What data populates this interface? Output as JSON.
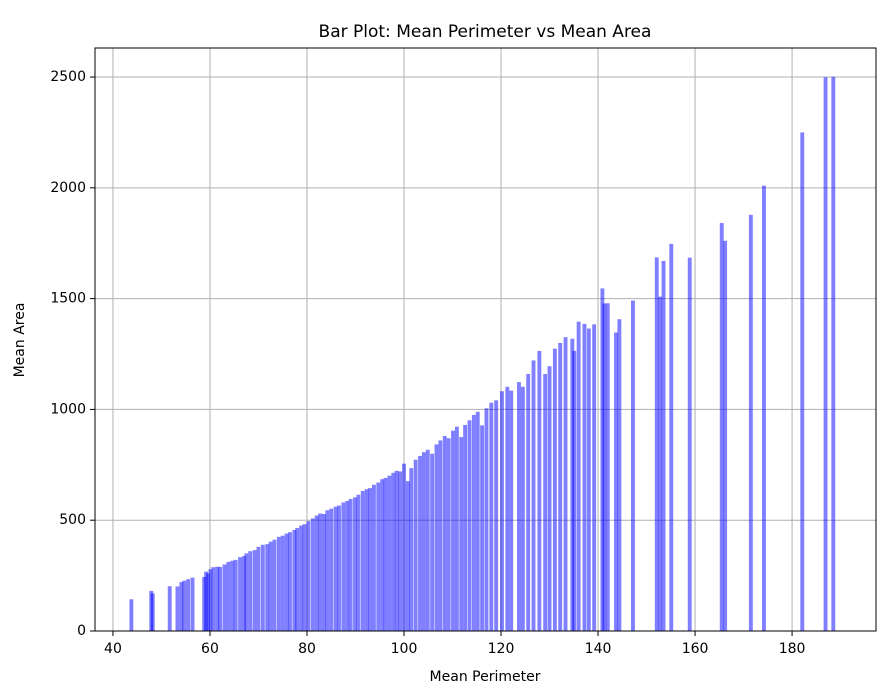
{
  "chart_data": {
    "type": "bar",
    "title": "Bar Plot: Mean Perimeter vs Mean Area",
    "x_label": "Mean Perimeter",
    "y_label": "Mean Area",
    "x": [
      43.8,
      47.9,
      48.2,
      51.7,
      53.3,
      54.1,
      54.7,
      55.5,
      56.4,
      58.8,
      59.2,
      59.6,
      60.1,
      60.7,
      61.5,
      62.1,
      63.0,
      63.8,
      64.6,
      65.3,
      66.2,
      67.0,
      67.5,
      68.3,
      69.2,
      70.0,
      70.9,
      71.8,
      72.5,
      73.3,
      74.2,
      75.0,
      75.8,
      76.5,
      77.4,
      78.0,
      78.8,
      79.5,
      80.3,
      81.2,
      82.0,
      82.7,
      83.5,
      84.2,
      85.0,
      85.9,
      86.6,
      87.5,
      88.3,
      89.0,
      89.9,
      90.6,
      91.5,
      92.3,
      93.0,
      93.8,
      94.7,
      95.5,
      96.2,
      97.0,
      97.8,
      98.5,
      99.2,
      100.0,
      100.8,
      101.5,
      102.4,
      103.3,
      104.1,
      104.9,
      105.8,
      106.7,
      107.5,
      108.4,
      109.2,
      110.1,
      110.9,
      111.8,
      112.6,
      113.5,
      114.4,
      115.2,
      116.1,
      117.0,
      118.0,
      119.0,
      120.2,
      121.3,
      122.1,
      123.7,
      124.5,
      125.6,
      126.7,
      127.9,
      129.1,
      130.0,
      131.1,
      132.2,
      133.3,
      134.7,
      135.1,
      136.0,
      137.2,
      138.1,
      139.2,
      140.9,
      141.3,
      142.0,
      143.7,
      144.4,
      147.2,
      152.1,
      152.8,
      153.5,
      155.1,
      158.9,
      165.5,
      166.2,
      171.5,
      174.2,
      182.1,
      186.9,
      188.5
    ],
    "values": [
      143,
      181,
      170,
      202,
      201,
      221,
      227,
      234,
      241,
      244,
      268,
      260,
      279,
      288,
      290,
      289,
      300,
      312,
      317,
      321,
      333,
      338,
      350,
      360,
      365,
      380,
      389,
      392,
      403,
      412,
      425,
      430,
      440,
      446,
      456,
      465,
      476,
      482,
      496,
      508,
      521,
      530,
      528,
      545,
      552,
      561,
      566,
      580,
      587,
      596,
      603,
      615,
      632,
      640,
      645,
      660,
      670,
      685,
      691,
      701,
      714,
      723,
      720,
      755,
      676,
      735,
      773,
      790,
      807,
      818,
      800,
      842,
      860,
      880,
      870,
      904,
      922,
      875,
      930,
      951,
      975,
      989,
      928,
      1005,
      1030,
      1041,
      1082,
      1102,
      1085,
      1123,
      1102,
      1160,
      1221,
      1264,
      1160,
      1195,
      1274,
      1300,
      1326,
      1319,
      1264,
      1396,
      1386,
      1365,
      1384,
      1546,
      1478,
      1479,
      1347,
      1407,
      1491,
      1686,
      1509,
      1670,
      1747,
      1685,
      1841,
      1761,
      1878,
      2010,
      2250,
      2499,
      2501
    ],
    "color": "blue",
    "opacity": 0.5,
    "bar_width": 0.8,
    "xlim": [
      36.3,
      197.3
    ],
    "ylim": [
      0,
      2631
    ],
    "xticks": [
      40,
      60,
      80,
      100,
      120,
      140,
      160,
      180
    ],
    "yticks": [
      0,
      500,
      1000,
      1500,
      2000,
      2500
    ],
    "grid": true
  }
}
